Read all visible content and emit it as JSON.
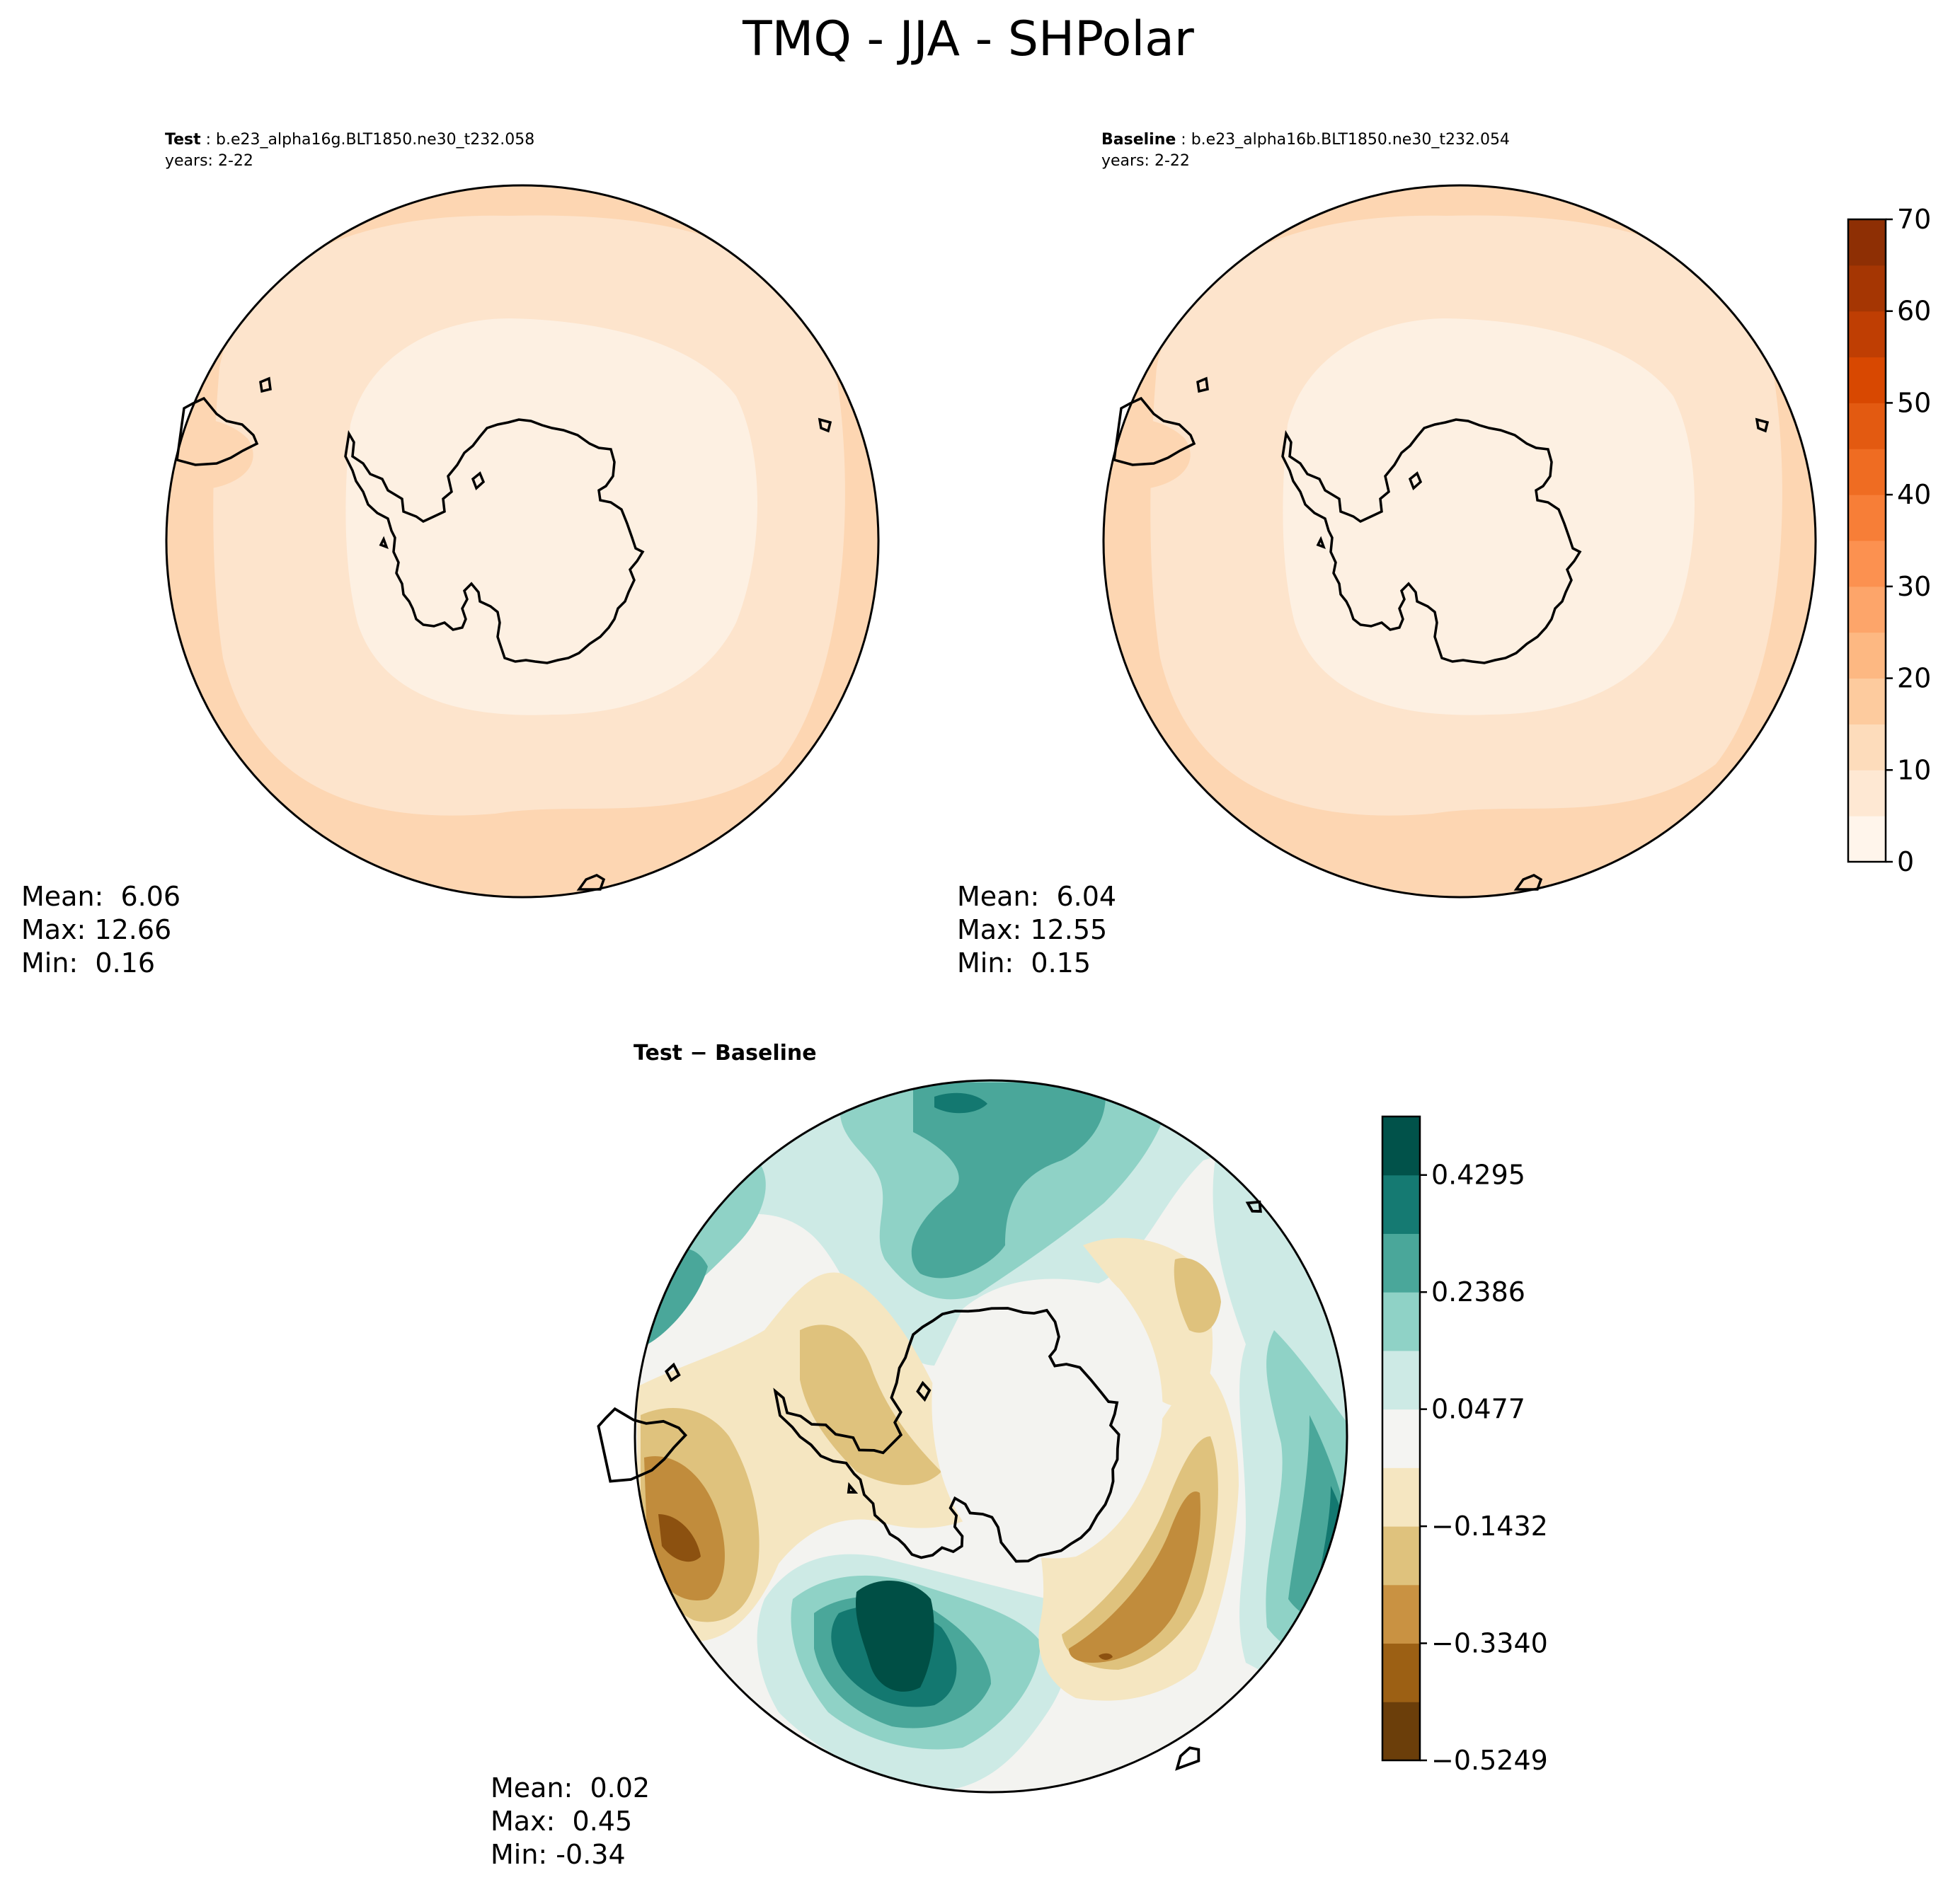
{
  "title": "TMQ - JJA - SHPolar",
  "chart_data": [
    {
      "type": "heatmap",
      "projection": "south-polar-stereographic",
      "subtitle_bold": "Test",
      "subtitle_rest": " : b.e23_alpha16g.BLT1850.ne30_t232.058",
      "years": "years: 2-22",
      "stats": {
        "mean": "Mean:  6.06",
        "max": "Max: 12.66",
        "min": "Min:  0.16"
      },
      "contour_levels": [
        0,
        5,
        10,
        15
      ],
      "fill_colors": [
        "#fdf0e2",
        "#fde4cc",
        "#fdd6b2"
      ]
    },
    {
      "type": "heatmap",
      "projection": "south-polar-stereographic",
      "subtitle_bold": "Baseline",
      "subtitle_rest": " : b.e23_alpha16b.BLT1850.ne30_t232.054",
      "years": "years: 2-22",
      "stats": {
        "mean": "Mean:  6.04",
        "max": "Max: 12.55",
        "min": "Min:  0.15"
      },
      "contour_levels": [
        0,
        5,
        10,
        15
      ],
      "fill_colors": [
        "#fdf0e2",
        "#fde4cc",
        "#fdd6b2"
      ]
    },
    {
      "type": "heatmap",
      "projection": "south-polar-stereographic",
      "subtitle_bold": "Test − Baseline",
      "stats": {
        "mean": "Mean:  0.02",
        "max": "Max:  0.45",
        "min": "Min: -0.34"
      },
      "fill_colors": [
        "#f3f3f0",
        "#cdeae5",
        "#8fd2c6",
        "#4aa79a",
        "#137870",
        "#004f45",
        "#f5e6c1",
        "#dfc27d",
        "#c18c3c",
        "#8c5110"
      ]
    }
  ],
  "colorbars": {
    "absolute": {
      "range": [
        0,
        70
      ],
      "ticks": [
        "0",
        "10",
        "20",
        "30",
        "40",
        "50",
        "60",
        "70"
      ],
      "levels": [
        0,
        5,
        10,
        15,
        20,
        25,
        30,
        35,
        40,
        45,
        50,
        55,
        60,
        65,
        70
      ],
      "colors": [
        "#fff5eb",
        "#fee8d3",
        "#fddcbb",
        "#fdcb9e",
        "#fdb882",
        "#fda56a",
        "#fc9150",
        "#f77e37",
        "#ef6c22",
        "#e35a11",
        "#d84801",
        "#bf3e03",
        "#a53603",
        "#8e2f04"
      ]
    },
    "difference": {
      "range": [
        -0.5249,
        0.5249
      ],
      "ticks": [
        "0.4295",
        "0.2386",
        "0.0477",
        "−0.1432",
        "−0.3340",
        "−0.5249"
      ],
      "tick_values": [
        0.4295,
        0.2386,
        0.0477,
        -0.1432,
        -0.334,
        -0.5249
      ],
      "colors": [
        "#6b3e0a",
        "#9c6014",
        "#c99242",
        "#dfc27d",
        "#f5e6c1",
        "#f4f4f2",
        "#cdeae5",
        "#8fd2c6",
        "#4aa79a",
        "#157a72",
        "#01524a"
      ]
    }
  }
}
